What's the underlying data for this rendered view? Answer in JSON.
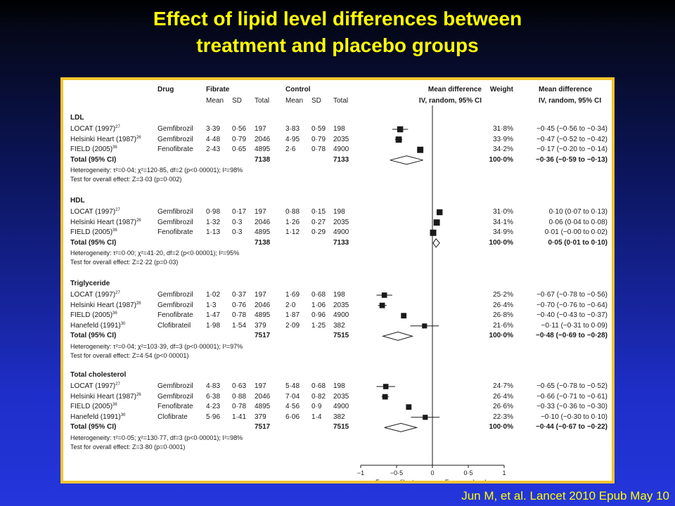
{
  "title": {
    "line1": "Effect of lipid level differences between",
    "line2": "treatment and placebo groups"
  },
  "citation": "Jun M, et al. Lancet 2010 Epub May 10",
  "colors": {
    "title": "#ffff00",
    "panel_border": "#f4c430",
    "marker": "#1a1a1a"
  },
  "table": {
    "headers": {
      "drug": "Drug",
      "fibrate": "Fibrate",
      "control": "Control",
      "mean": "Mean",
      "sd": "SD",
      "total": "Total",
      "md": "Mean difference",
      "md_sub": "IV, random, 95% CI",
      "weight": "Weight",
      "md2": "Mean difference",
      "md2_sub": "IV, random, 95% CI"
    },
    "sections": [
      {
        "name": "LDL",
        "studies": [
          {
            "study": "LOCAT (1997)",
            "ref": "27",
            "drug": "Gemfibrozil",
            "f_mean": "3·39",
            "f_sd": "0·56",
            "f_n": "197",
            "c_mean": "3·83",
            "c_sd": "0·59",
            "c_n": "198",
            "weight": "31·8%",
            "ci": "−0·45 (−0·56 to −0·34)"
          },
          {
            "study": "Helsinki Heart (1987)",
            "ref": "26",
            "drug": "Gemfibrozil",
            "f_mean": "4·48",
            "f_sd": "0·79",
            "f_n": "2046",
            "c_mean": "4·95",
            "c_sd": "0·79",
            "c_n": "2035",
            "weight": "33·9%",
            "ci": "−0·47 (−0·52 to −0·42)"
          },
          {
            "study": "FIELD (2005)",
            "ref": "36",
            "drug": "Fenofibrate",
            "f_mean": "2·43",
            "f_sd": "0·65",
            "f_n": "4895",
            "c_mean": "2·6",
            "c_sd": "0·78",
            "c_n": "4900",
            "weight": "34·2%",
            "ci": "−0·17 (−0·20 to −0·14)"
          }
        ],
        "total": {
          "label": "Total (95% CI)",
          "f_n": "7138",
          "c_n": "7133",
          "weight": "100·0%",
          "ci": "−0·36 (−0·59 to −0·13)"
        },
        "heterogeneity": "Heterogeneity: τ²=0·04; χ²=120·85, df=2 (p<0·00001); I²=98%",
        "overall": "Test for overall effect: Z=3·03 (p=0·002)"
      },
      {
        "name": "HDL",
        "studies": [
          {
            "study": "LOCAT (1997)",
            "ref": "27",
            "drug": "Gemfibrozil",
            "f_mean": "0·98",
            "f_sd": "0·17",
            "f_n": "197",
            "c_mean": "0·88",
            "c_sd": "0·15",
            "c_n": "198",
            "weight": "31·0%",
            "ci": "0·10 (0·07 to 0·13)"
          },
          {
            "study": "Helsinki Heart (1987)",
            "ref": "26",
            "drug": "Gemfibrozil",
            "f_mean": "1·32",
            "f_sd": "0·3",
            "f_n": "2046",
            "c_mean": "1·26",
            "c_sd": "0·27",
            "c_n": "2035",
            "weight": "34·1%",
            "ci": "0·06 (0·04 to 0·08)"
          },
          {
            "study": "FIELD (2005)",
            "ref": "36",
            "drug": "Fenofibrate",
            "f_mean": "1·13",
            "f_sd": "0·3",
            "f_n": "4895",
            "c_mean": "1·12",
            "c_sd": "0·29",
            "c_n": "4900",
            "weight": "34·9%",
            "ci": "0·01 (−0·00 to 0·02)"
          }
        ],
        "total": {
          "label": "Total (95% CI)",
          "f_n": "7138",
          "c_n": "7133",
          "weight": "100·0%",
          "ci": "0·05 (0·01 to 0·10)"
        },
        "heterogeneity": "Heterogeneity: τ²=0·00; χ²=41·20, df=2 (p<0·00001); I²=95%",
        "overall": "Test for overall effect: Z=2·22 (p=0·03)"
      },
      {
        "name": "Triglyceride",
        "studies": [
          {
            "study": "LOCAT (1997)",
            "ref": "27",
            "drug": "Gemfibrozil",
            "f_mean": "1·02",
            "f_sd": "0·37",
            "f_n": "197",
            "c_mean": "1·69",
            "c_sd": "0·68",
            "c_n": "198",
            "weight": "25·2%",
            "ci": "−0·67 (−0·78 to −0·56)"
          },
          {
            "study": "Helsinki Heart (1987)",
            "ref": "26",
            "drug": "Gemfibrozil",
            "f_mean": "1·3",
            "f_sd": "0·76",
            "f_n": "2046",
            "c_mean": "2·0",
            "c_sd": "1·06",
            "c_n": "2035",
            "weight": "26·4%",
            "ci": "−0·70 (−0·76 to −0·64)"
          },
          {
            "study": "FIELD (2005)",
            "ref": "36",
            "drug": "Fenofibrate",
            "f_mean": "1·47",
            "f_sd": "0·78",
            "f_n": "4895",
            "c_mean": "1·87",
            "c_sd": "0·96",
            "c_n": "4900",
            "weight": "26·8%",
            "ci": "−0·40 (−0·43 to −0·37)"
          },
          {
            "study": "Hanefeld (1991)",
            "ref": "30",
            "drug": "Clofibrateil",
            "f_mean": "1·98",
            "f_sd": "1·54",
            "f_n": "379",
            "c_mean": "2·09",
            "c_sd": "1·25",
            "c_n": "382",
            "weight": "21·6%",
            "ci": "−0·11 (−0·31 to 0·09)"
          }
        ],
        "total": {
          "label": "Total (95% CI)",
          "f_n": "7517",
          "c_n": "7515",
          "weight": "100·0%",
          "ci": "−0·48 (−0·69 to −0·28)"
        },
        "heterogeneity": "Heterogeneity: τ²=0·04; χ²=103·39, df=3 (p<0·00001); I²=97%",
        "overall": "Test for overall effect: Z=4·54 (p<0·00001)"
      },
      {
        "name": "Total cholesterol",
        "studies": [
          {
            "study": "LOCAT (1997)",
            "ref": "27",
            "drug": "Gemfibrozil",
            "f_mean": "4·83",
            "f_sd": "0·63",
            "f_n": "197",
            "c_mean": "5·48",
            "c_sd": "0·68",
            "c_n": "198",
            "weight": "24·7%",
            "ci": "−0·65 (−0·78 to −0·52)"
          },
          {
            "study": "Helsinki Heart (1987)",
            "ref": "26",
            "drug": "Gemfibrozil",
            "f_mean": "6·38",
            "f_sd": "0·88",
            "f_n": "2046",
            "c_mean": "7·04",
            "c_sd": "0·82",
            "c_n": "2035",
            "weight": "26·4%",
            "ci": "−0·66 (−0·71 to −0·61)"
          },
          {
            "study": "FIELD (2005)",
            "ref": "36",
            "drug": "Fenofibrate",
            "f_mean": "4·23",
            "f_sd": "0·78",
            "f_n": "4895",
            "c_mean": "4·56",
            "c_sd": "0·9",
            "c_n": "4900",
            "weight": "26·6%",
            "ci": "−0·33 (−0·36 to −0·30)"
          },
          {
            "study": "Hanefeld (1991)",
            "ref": "30",
            "drug": "Clofibrate",
            "f_mean": "5·96",
            "f_sd": "1·41",
            "f_n": "379",
            "c_mean": "6·06",
            "c_sd": "1·4",
            "c_n": "382",
            "weight": "22·3%",
            "ci": "−0·10 (−0·30 to 0·10)"
          }
        ],
        "total": {
          "label": "Total (95% CI)",
          "f_n": "7517",
          "c_n": "7515",
          "weight": "100·0%",
          "ci": "−0·44 (−0·67 to −0·22)"
        },
        "heterogeneity": "Heterogeneity: τ²=0·05; χ²=130·77, df=3 (p<0·00001); I²=98%",
        "overall": "Test for overall effect: Z=3·80 (p=0·0001)"
      }
    ]
  },
  "chart_data": {
    "type": "scatter",
    "xlim": [
      -1,
      1
    ],
    "x_ticks": [
      "−1",
      "−0·5",
      "0",
      "0·5",
      "1"
    ],
    "x_tick_values": [
      -1,
      -0.5,
      0,
      0.5,
      1
    ],
    "xlabel_left": "Favours fibrate",
    "xlabel_right": "Favours placebo",
    "groups": [
      {
        "studies": [
          {
            "md": -0.45,
            "lo": -0.56,
            "hi": -0.34,
            "weight": 31.8
          },
          {
            "md": -0.47,
            "lo": -0.52,
            "hi": -0.42,
            "weight": 33.9
          },
          {
            "md": -0.17,
            "lo": -0.2,
            "hi": -0.14,
            "weight": 34.2
          }
        ],
        "total": {
          "md": -0.36,
          "lo": -0.59,
          "hi": -0.13
        }
      },
      {
        "studies": [
          {
            "md": 0.1,
            "lo": 0.07,
            "hi": 0.13,
            "weight": 31.0
          },
          {
            "md": 0.06,
            "lo": 0.04,
            "hi": 0.08,
            "weight": 34.1
          },
          {
            "md": 0.01,
            "lo": 0.0,
            "hi": 0.02,
            "weight": 34.9
          }
        ],
        "total": {
          "md": 0.05,
          "lo": 0.01,
          "hi": 0.1
        }
      },
      {
        "studies": [
          {
            "md": -0.67,
            "lo": -0.78,
            "hi": -0.56,
            "weight": 25.2
          },
          {
            "md": -0.7,
            "lo": -0.76,
            "hi": -0.64,
            "weight": 26.4
          },
          {
            "md": -0.4,
            "lo": -0.43,
            "hi": -0.37,
            "weight": 26.8
          },
          {
            "md": -0.11,
            "lo": -0.31,
            "hi": 0.09,
            "weight": 21.6
          }
        ],
        "total": {
          "md": -0.48,
          "lo": -0.69,
          "hi": -0.28
        }
      },
      {
        "studies": [
          {
            "md": -0.65,
            "lo": -0.78,
            "hi": -0.52,
            "weight": 24.7
          },
          {
            "md": -0.66,
            "lo": -0.71,
            "hi": -0.61,
            "weight": 26.4
          },
          {
            "md": -0.33,
            "lo": -0.36,
            "hi": -0.3,
            "weight": 26.6
          },
          {
            "md": -0.1,
            "lo": -0.3,
            "hi": 0.1,
            "weight": 22.3
          }
        ],
        "total": {
          "md": -0.44,
          "lo": -0.67,
          "hi": -0.22
        }
      }
    ]
  }
}
